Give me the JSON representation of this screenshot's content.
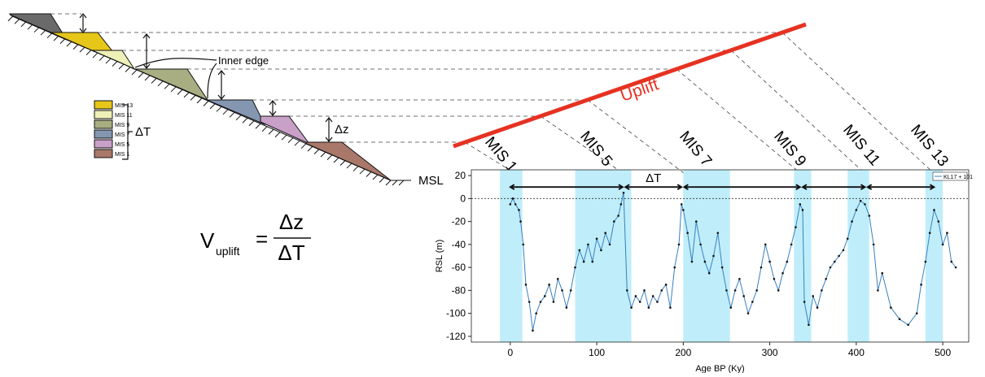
{
  "diagram": {
    "legend": [
      "MIS 13",
      "MIS 11",
      "MIS 9",
      "MIS 7",
      "MIS 5",
      "MIS 1"
    ],
    "inner_edge": "Inner edge",
    "delta_t": "ΔT",
    "delta_z": "Δz",
    "msl": "MSL",
    "uplift": "Uplift",
    "formula": {
      "v": "V",
      "sub": "uplift",
      "num": "Δz",
      "den": "ΔT"
    },
    "mis_labels": [
      "MIS 1",
      "MIS 5",
      "MIS 7",
      "MIS 9",
      "MIS 11",
      "MIS 13"
    ]
  },
  "chart_data": {
    "type": "line",
    "x_label": "Age BP (Ky)",
    "y_label": "RSL (m)",
    "xlim": [
      -45,
      530
    ],
    "xticks": [
      0,
      100,
      200,
      300,
      400,
      500
    ],
    "ylim": [
      -125,
      25
    ],
    "yticks": [
      20,
      0,
      -20,
      -40,
      -60,
      -80,
      -100,
      -120
    ],
    "legend": "upper right",
    "bands": [
      [
        -12,
        14
      ],
      [
        75,
        140
      ],
      [
        200,
        254
      ],
      [
        328,
        348
      ],
      [
        390,
        415
      ],
      [
        480,
        500
      ]
    ],
    "band_color": "#bfeefa",
    "delta_t_arrows": [
      [
        0,
        130
      ],
      [
        133,
        198
      ],
      [
        201,
        335
      ],
      [
        338,
        410
      ],
      [
        413,
        490
      ]
    ],
    "delta_t_y": 10,
    "delta_t_label": "ΔT",
    "series": [
      {
        "name": "KL17 + 101",
        "color": "#3a7fc0",
        "x": [
          0,
          3,
          6,
          10,
          12,
          15,
          18,
          22,
          26,
          30,
          35,
          40,
          45,
          50,
          55,
          60,
          65,
          70,
          75,
          80,
          85,
          90,
          95,
          100,
          105,
          110,
          115,
          120,
          125,
          128,
          131,
          135,
          140,
          145,
          150,
          155,
          160,
          165,
          170,
          175,
          180,
          185,
          190,
          195,
          198,
          200,
          205,
          210,
          215,
          220,
          225,
          230,
          235,
          240,
          245,
          250,
          255,
          260,
          265,
          270,
          275,
          280,
          285,
          290,
          295,
          300,
          305,
          310,
          315,
          320,
          325,
          330,
          335,
          338,
          340,
          345,
          350,
          355,
          360,
          365,
          370,
          375,
          380,
          385,
          390,
          395,
          400,
          405,
          410,
          415,
          420,
          425,
          430,
          440,
          450,
          460,
          470,
          475,
          480,
          485,
          490,
          495,
          500,
          505,
          510,
          515
        ],
        "values": [
          -5,
          0,
          -5,
          -10,
          -20,
          -40,
          -75,
          -90,
          -115,
          -100,
          -90,
          -85,
          -75,
          -90,
          -70,
          -80,
          -95,
          -80,
          -60,
          -45,
          -55,
          -40,
          -55,
          -35,
          -45,
          -30,
          -40,
          -20,
          -15,
          -5,
          5,
          -80,
          -95,
          -85,
          -90,
          -80,
          -95,
          -85,
          -90,
          -80,
          -75,
          -95,
          -60,
          -40,
          -5,
          -10,
          -30,
          -55,
          -20,
          -40,
          -55,
          -65,
          -50,
          -30,
          -60,
          -80,
          -95,
          -80,
          -70,
          -85,
          -100,
          -90,
          -80,
          -60,
          -40,
          -55,
          -70,
          -80,
          -65,
          -55,
          -40,
          -25,
          -5,
          -10,
          -90,
          -110,
          -85,
          -95,
          -80,
          -70,
          -60,
          -55,
          -50,
          -45,
          -35,
          -20,
          -10,
          -2,
          -5,
          -15,
          -40,
          -80,
          -65,
          -95,
          -105,
          -110,
          -100,
          -75,
          -55,
          -30,
          -10,
          -20,
          -40,
          -30,
          -55,
          -60
        ]
      }
    ]
  }
}
